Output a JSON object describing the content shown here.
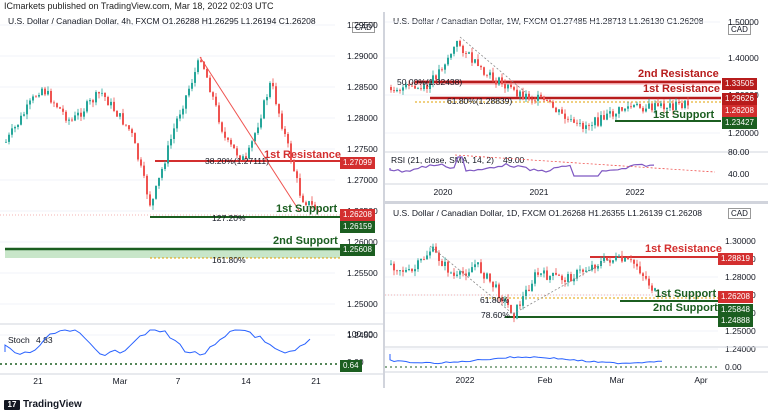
{
  "header": {
    "published": "ICmarkets published on TradingView.com, Mar 18, 2022 02:03 UTC"
  },
  "footer": {
    "brand": "TradingView",
    "logo_glyph": "17"
  },
  "colors": {
    "resistance": "#d32f2f",
    "support": "#1b5e20",
    "up": "#26a69a",
    "down": "#ef5350",
    "stoch": "#2962ff",
    "rsi": "#7e57c2",
    "fib": "#e0a000"
  },
  "panes": {
    "h4": {
      "title": "U.S. Dollar / Canadian Dollar, 4h, FXCM  O1.26288  H1.26295  L1.26194  C1.26208",
      "currency": "CAD",
      "y_ticks": [
        "1.29500",
        "1.29000",
        "1.28500",
        "1.28000",
        "1.27500",
        "1.27000",
        "1.26500",
        "1.26000",
        "1.25500",
        "1.25000",
        "1.24500"
      ],
      "x_ticks": [
        "21",
        "Mar",
        "7",
        "14",
        "21"
      ],
      "res1": {
        "label": "1st Resistance",
        "price": "1.27099"
      },
      "sup1": {
        "label": "1st Support",
        "price": "1.26159"
      },
      "sup2": {
        "label": "2nd Support",
        "price": "1.25608"
      },
      "last_price": "1.26208",
      "fib1": "38.20%(1.27111)",
      "fib2": "127.20%",
      "fib3": "161.80%",
      "stoch": {
        "label": "Stoch",
        "value": "4.83",
        "ticks": [
          "100.00",
          "0.00"
        ],
        "last": "0.64"
      }
    },
    "w1": {
      "title": "U.S. Dollar / Canadian Dollar, 1W, FXCM  O1.27485  H1.28713  L1.26130  C1.26208",
      "currency": "CAD",
      "y_ticks": [
        "1.50000",
        "1.40000",
        "1.30000",
        "1.20000"
      ],
      "x_ticks": [
        "2020",
        "2021",
        "2022"
      ],
      "res2": {
        "label": "2nd Resistance",
        "price": "1.33505"
      },
      "res1": {
        "label": "1st Resistance",
        "price": "1.29626"
      },
      "sup1": {
        "label": "1st Support",
        "price": "1.23427"
      },
      "last_price": "1.26208",
      "fib1": "50.00%(1.32438)",
      "fib2": "61.80%(1.28839)",
      "rsi": {
        "label": "RSI (21, close, SMA, 14, 2)",
        "value": "49.00",
        "ticks": [
          "80.00",
          "40.00"
        ]
      }
    },
    "d1": {
      "title": "U.S. Dollar / Canadian Dollar, 1D, FXCM  O1.26268  H1.26355  L1.26139  C1.26208",
      "currency": "CAD",
      "y_ticks": [
        "1.30000",
        "1.29000",
        "1.28000",
        "1.27000",
        "1.26000",
        "1.25000",
        "1.24000"
      ],
      "x_ticks": [
        "2022",
        "Feb",
        "Mar",
        "Apr"
      ],
      "res1": {
        "label": "1st Resistance",
        "price": "1.28819"
      },
      "sup1": {
        "label": "1st Support",
        "price": "1.25848"
      },
      "sup2": {
        "label": "2nd Support",
        "price": "1.24888"
      },
      "last_price": "1.26208",
      "fib1": "61.80%",
      "fib2": "78.60%",
      "osc": {
        "ticks": [
          "0.00"
        ]
      }
    }
  }
}
